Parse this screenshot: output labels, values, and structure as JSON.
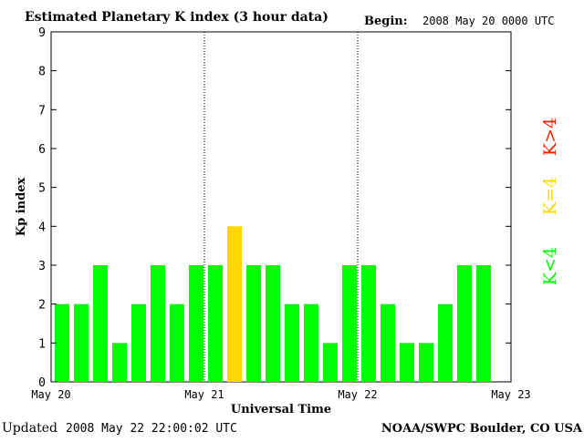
{
  "chart_data": {
    "type": "bar",
    "title": "Estimated Planetary K index (3 hour data)",
    "begin_label": "Begin:",
    "begin_value": "2008 May 20 0000 UTC",
    "xlabel": "Universal Time",
    "ylabel": "Kp index",
    "ylim": [
      0,
      9
    ],
    "y_ticks": [
      "0",
      "1",
      "2",
      "3",
      "4",
      "5",
      "6",
      "7",
      "8",
      "9"
    ],
    "x_ticks": [
      "May 20",
      "May 21",
      "May 22",
      "May 23"
    ],
    "x_range_days": [
      0,
      3
    ],
    "bins_per_day": 8,
    "values": [
      2,
      2,
      3,
      1,
      2,
      3,
      2,
      3,
      3,
      4,
      3,
      3,
      2,
      2,
      1,
      3,
      3,
      2,
      1,
      1,
      2,
      3,
      3
    ],
    "day_dividers": [
      1,
      2
    ],
    "grid": false,
    "colors": {
      "below_4": "#00ff00",
      "equal_4": "#ffd700",
      "above_4": "#ff2000"
    },
    "legend": {
      "placement": "right",
      "entries": [
        {
          "label": "K>4",
          "color": "#ff2000"
        },
        {
          "label": "K=4",
          "color": "#ffd700"
        },
        {
          "label": "K<4",
          "color": "#00ff00"
        }
      ]
    }
  },
  "footer": {
    "updated_label": "Updated",
    "updated_value": "2008 May 22 22:00:02 UTC",
    "source": "NOAA/SWPC Boulder, CO USA"
  }
}
